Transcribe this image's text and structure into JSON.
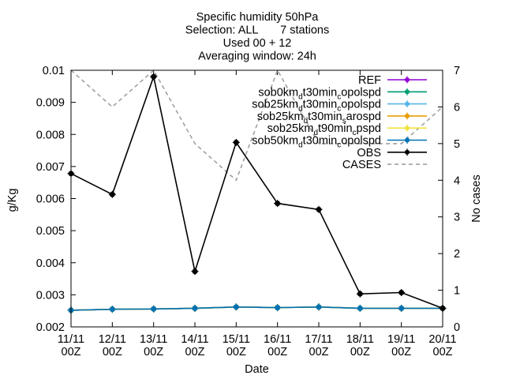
{
  "chart_data": {
    "type": "line",
    "title_lines": [
      "Specific humidity 50hPa",
      "Selection: ALL       7 stations",
      "Used 00 + 12",
      "Averaging window: 24h"
    ],
    "xlabel": "Date",
    "ylabel": "g/Kg",
    "y2label": "No cases",
    "categories": [
      [
        "11/11",
        "00Z"
      ],
      [
        "12/11",
        "00Z"
      ],
      [
        "13/11",
        "00Z"
      ],
      [
        "14/11",
        "00Z"
      ],
      [
        "15/11",
        "00Z"
      ],
      [
        "16/11",
        "00Z"
      ],
      [
        "17/11",
        "00Z"
      ],
      [
        "18/11",
        "00Z"
      ],
      [
        "19/11",
        "00Z"
      ],
      [
        "20/11",
        "00Z"
      ]
    ],
    "ylim": [
      0.002,
      0.01
    ],
    "yticks": [
      "0.002",
      "0.003",
      "0.004",
      "0.005",
      "0.006",
      "0.007",
      "0.008",
      "0.009",
      "0.01"
    ],
    "y2lim": [
      0,
      7
    ],
    "y2ticks": [
      "0",
      "1",
      "2",
      "3",
      "4",
      "5",
      "6",
      "7"
    ],
    "legend_position": "top-right",
    "series": [
      {
        "label": "REF",
        "color": "#9400d3",
        "style": "line-points",
        "axis": "y",
        "values": [
          0.00252,
          0.00255,
          0.00256,
          0.00258,
          0.00262,
          0.0026,
          0.00262,
          0.00258,
          0.00258,
          0.00258
        ]
      },
      {
        "label": [
          [
            "sob0km",
            ""
          ],
          [
            "d",
            "sub"
          ],
          [
            "t30min",
            ""
          ],
          [
            "c",
            "sub"
          ],
          [
            "opolspd",
            ""
          ]
        ],
        "color": "#009e73",
        "style": "line-points",
        "axis": "y",
        "values": [
          0.00252,
          0.00255,
          0.00256,
          0.00258,
          0.00262,
          0.0026,
          0.00262,
          0.00258,
          0.00258,
          0.00258
        ]
      },
      {
        "label": [
          [
            "sob25km",
            ""
          ],
          [
            "d",
            "sub"
          ],
          [
            "t30min",
            ""
          ],
          [
            "c",
            "sub"
          ],
          [
            "opolspd",
            ""
          ]
        ],
        "color": "#56b4e9",
        "style": "line-points",
        "axis": "y",
        "values": [
          0.00252,
          0.00255,
          0.00256,
          0.00258,
          0.00262,
          0.0026,
          0.00262,
          0.00258,
          0.00258,
          0.00258
        ]
      },
      {
        "label": [
          [
            "sob25km",
            ""
          ],
          [
            "d",
            "sub"
          ],
          [
            "t30min",
            ""
          ],
          [
            "s",
            "sub"
          ],
          [
            "arospd",
            ""
          ]
        ],
        "color": "#e69f00",
        "style": "line-points",
        "axis": "y",
        "values": [
          0.00252,
          0.00255,
          0.00256,
          0.00258,
          0.00262,
          0.0026,
          0.00262,
          0.00258,
          0.00258,
          0.00258
        ]
      },
      {
        "label": [
          [
            "sob25km",
            ""
          ],
          [
            "d",
            "sub"
          ],
          [
            "t90min",
            ""
          ],
          [
            "c",
            "sub"
          ],
          [
            "pspd",
            ""
          ]
        ],
        "color": "#f0e442",
        "style": "line-points",
        "axis": "y",
        "values": [
          0.00252,
          0.00255,
          0.00256,
          0.00258,
          0.00262,
          0.0026,
          0.00262,
          0.00258,
          0.00258,
          0.00258
        ]
      },
      {
        "label": [
          [
            "sob50km",
            ""
          ],
          [
            "d",
            "sub"
          ],
          [
            "t30min",
            ""
          ],
          [
            "c",
            "sub"
          ],
          [
            "opolspd",
            ""
          ]
        ],
        "color": "#0072b2",
        "style": "line-points",
        "axis": "y",
        "values": [
          0.00252,
          0.00255,
          0.00256,
          0.00258,
          0.00262,
          0.0026,
          0.00262,
          0.00258,
          0.00258,
          0.00258
        ]
      },
      {
        "label": "OBS",
        "color": "#000000",
        "style": "line-points",
        "axis": "y",
        "values": [
          0.00678,
          0.00613,
          0.0098,
          0.00373,
          0.00775,
          0.00585,
          0.00566,
          0.00303,
          0.00307,
          0.00258
        ]
      },
      {
        "label": "CASES",
        "color": "#a0a0a0",
        "style": "dashed",
        "axis": "y2",
        "values": [
          7,
          6,
          7,
          5,
          4,
          7,
          5,
          5,
          5,
          6
        ]
      }
    ]
  }
}
